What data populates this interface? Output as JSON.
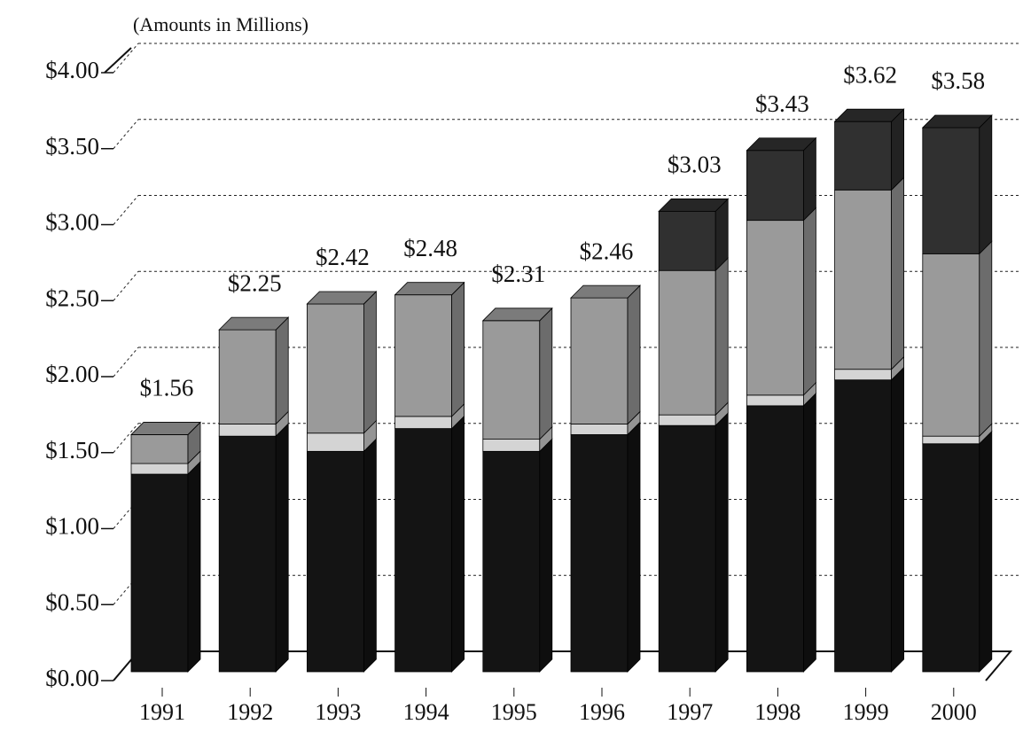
{
  "chart_data": {
    "type": "bar",
    "stacked": true,
    "three_d": true,
    "subtitle": "(Amounts in Millions)",
    "categories": [
      "1991",
      "1992",
      "1993",
      "1994",
      "1995",
      "1996",
      "1997",
      "1998",
      "1999",
      "2000"
    ],
    "series": [
      {
        "color": "#141414",
        "values": [
          1.3,
          1.55,
          1.45,
          1.6,
          1.45,
          1.56,
          1.62,
          1.75,
          1.92,
          1.5
        ]
      },
      {
        "color": "#d4d4d4",
        "values": [
          0.07,
          0.08,
          0.12,
          0.08,
          0.08,
          0.07,
          0.07,
          0.07,
          0.07,
          0.05
        ]
      },
      {
        "color": "#9a9a9a",
        "values": [
          0.19,
          0.62,
          0.85,
          0.8,
          0.78,
          0.83,
          0.95,
          1.15,
          1.18,
          1.2
        ]
      },
      {
        "color": "#303030",
        "values": [
          0,
          0,
          0,
          0,
          0,
          0,
          0.39,
          0.46,
          0.45,
          0.83
        ]
      }
    ],
    "totals": [
      1.56,
      2.25,
      2.42,
      2.48,
      2.31,
      2.46,
      3.03,
      3.43,
      3.62,
      3.58
    ],
    "total_labels": [
      "$1.56",
      "$2.25",
      "$2.42",
      "$2.48",
      "$2.31",
      "$2.46",
      "$3.03",
      "$3.43",
      "$3.62",
      "$3.58"
    ],
    "ylim": [
      0,
      4
    ],
    "yticks": [
      {
        "value": 0,
        "label": "$0.00"
      },
      {
        "value": 0.5,
        "label": "$0.50"
      },
      {
        "value": 1,
        "label": "$1.00"
      },
      {
        "value": 1.5,
        "label": "$1.50"
      },
      {
        "value": 2,
        "label": "$2.00"
      },
      {
        "value": 2.5,
        "label": "$2.50"
      },
      {
        "value": 3,
        "label": "$3.00"
      },
      {
        "value": 3.5,
        "label": "$3.50"
      },
      {
        "value": 4,
        "label": "$4.00"
      }
    ],
    "grid": true
  }
}
